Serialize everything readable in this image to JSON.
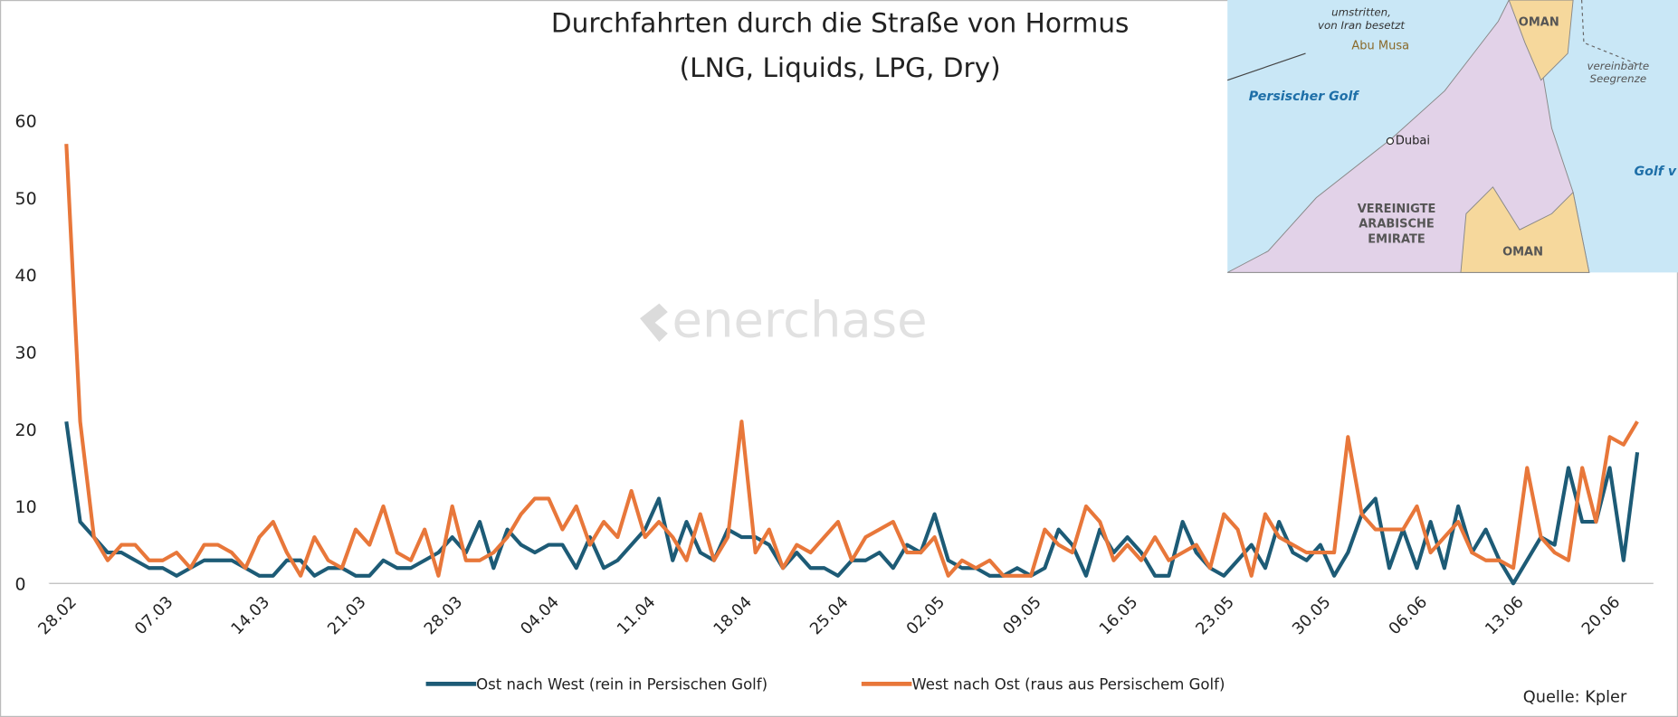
{
  "chart_data": {
    "type": "line",
    "title": "Durchfahrten durch die Straße von Hormus",
    "subtitle": "(LNG, Liquids, LPG, Dry)",
    "watermark": "enerchase",
    "source": "Quelle: Kpler",
    "categories": [
      "28.02",
      null,
      null,
      null,
      null,
      null,
      null,
      "07.03",
      null,
      null,
      null,
      null,
      null,
      null,
      "14.03",
      null,
      null,
      null,
      null,
      null,
      null,
      "21.03",
      null,
      null,
      null,
      null,
      null,
      null,
      "28.03",
      null,
      null,
      null,
      null,
      null,
      null,
      "04.04",
      null,
      null,
      null,
      null,
      null,
      null,
      "11.04",
      null,
      null,
      null,
      null,
      null,
      null,
      "18.04",
      null,
      null,
      null,
      null,
      null,
      null,
      "25.04",
      null,
      null,
      null,
      null,
      null,
      null,
      "02.05",
      null,
      null,
      null,
      null,
      null,
      null,
      "09.05",
      null,
      null,
      null,
      null,
      null,
      null,
      "16.05",
      null,
      null,
      null,
      null,
      null,
      null,
      "23.05",
      null,
      null,
      null,
      null,
      null,
      null,
      "30.05",
      null,
      null,
      null,
      null,
      null,
      null,
      "06.06",
      null,
      null,
      null,
      null,
      null,
      null,
      "13.06",
      null,
      null,
      null,
      null,
      null,
      null,
      "20.06",
      null,
      null
    ],
    "series": [
      {
        "name": "Ost nach West (rein in Persischen Golf)",
        "color": "#1d5b76",
        "values": [
          21,
          8,
          6,
          4,
          4,
          3,
          2,
          2,
          1,
          2,
          3,
          3,
          3,
          2,
          1,
          1,
          3,
          3,
          1,
          2,
          2,
          1,
          1,
          3,
          2,
          2,
          3,
          4,
          6,
          4,
          8,
          2,
          7,
          5,
          4,
          5,
          5,
          2,
          6,
          2,
          3,
          5,
          7,
          11,
          3,
          8,
          4,
          3,
          7,
          6,
          6,
          5,
          2,
          4,
          2,
          2,
          1,
          3,
          3,
          4,
          2,
          5,
          4,
          9,
          3,
          2,
          2,
          1,
          1,
          2,
          1,
          2,
          7,
          5,
          1,
          7,
          4,
          6,
          4,
          1,
          1,
          8,
          4,
          2,
          1,
          3,
          5,
          2,
          8,
          4,
          3,
          5,
          1,
          4,
          9,
          11,
          2,
          7,
          2,
          8,
          2,
          10,
          4,
          7,
          3,
          0,
          3,
          6,
          5,
          15,
          8,
          8,
          15,
          3,
          17
        ]
      },
      {
        "name": "West nach Ost (raus aus Persischem Golf)",
        "color": "#e8773a",
        "values": [
          57,
          21,
          6,
          3,
          5,
          5,
          3,
          3,
          4,
          2,
          5,
          5,
          4,
          2,
          6,
          8,
          4,
          1,
          6,
          3,
          2,
          7,
          5,
          10,
          4,
          3,
          7,
          1,
          10,
          3,
          3,
          4,
          6,
          9,
          11,
          11,
          7,
          10,
          5,
          8,
          6,
          12,
          6,
          8,
          6,
          3,
          9,
          3,
          6,
          21,
          4,
          7,
          2,
          5,
          4,
          6,
          8,
          3,
          6,
          7,
          8,
          4,
          4,
          6,
          1,
          3,
          2,
          3,
          1,
          1,
          1,
          7,
          5,
          4,
          10,
          8,
          3,
          5,
          3,
          6,
          3,
          4,
          5,
          2,
          9,
          7,
          1,
          9,
          6,
          5,
          4,
          4,
          4,
          19,
          9,
          7,
          7,
          7,
          10,
          4,
          6,
          8,
          4,
          3,
          3,
          2,
          15,
          6,
          4,
          3,
          15,
          8,
          19,
          18,
          21
        ]
      }
    ],
    "ylim": [
      0,
      60
    ],
    "yticks": [
      0,
      10,
      20,
      30,
      40,
      50,
      60
    ],
    "grid": false,
    "legend": "bottom"
  },
  "map": {
    "labels": [
      "umstritten,",
      "von Iran besetzt",
      "Abu Musa",
      "OMAN",
      "vereinbarte",
      "Seegrenze",
      "Persischer Golf",
      "Dubai",
      "Golf v",
      "VEREINIGTE",
      "ARABISCHE",
      "EMIRATE",
      "OMAN"
    ]
  }
}
